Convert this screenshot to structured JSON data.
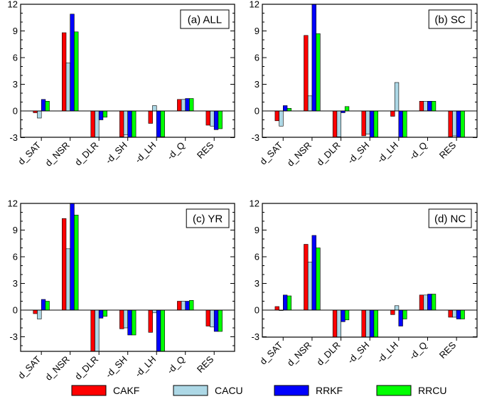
{
  "legend": {
    "items": [
      {
        "label": "CAKF",
        "color": "#ff0000"
      },
      {
        "label": "CACU",
        "color": "#add8e6"
      },
      {
        "label": "RRKF",
        "color": "#0000ff"
      },
      {
        "label": "RRCU",
        "color": "#00ff00"
      }
    ]
  },
  "chart_data": [
    {
      "type": "bar",
      "title": "(a) ALL",
      "categories": [
        "d_SAT",
        "d_NSR",
        "d_DLR",
        "-d_SH",
        "-d_LH",
        "-d_Q",
        "RES"
      ],
      "ylim": [
        -5,
        12
      ],
      "yticks": [
        12,
        9,
        6,
        3,
        0,
        -3
      ],
      "series": [
        {
          "name": "CAKF",
          "values": [
            -0.2,
            8.8,
            -4.3,
            -2.9,
            -1.4,
            1.3,
            -1.6
          ]
        },
        {
          "name": "CACU",
          "values": [
            -0.8,
            5.4,
            -3.9,
            -2.7,
            0.6,
            1.3,
            -1.7
          ]
        },
        {
          "name": "RRKF",
          "values": [
            1.3,
            10.9,
            -1.0,
            -3.4,
            -4.4,
            1.4,
            -2.1
          ]
        },
        {
          "name": "RRCU",
          "values": [
            1.1,
            8.9,
            -0.7,
            -3.3,
            -2.9,
            1.4,
            -2.0
          ]
        }
      ]
    },
    {
      "type": "bar",
      "title": "(b) SC",
      "categories": [
        "d_SAT",
        "d_NSR",
        "d_DLR",
        "-d_SH",
        "-d_LH",
        "-d_Q",
        "RES"
      ],
      "ylim": [
        -5,
        12
      ],
      "yticks": [
        12,
        9,
        6,
        3,
        0,
        -3
      ],
      "series": [
        {
          "name": "CAKF",
          "values": [
            -1.1,
            8.5,
            -4.3,
            -2.8,
            -0.6,
            1.1,
            -2.9
          ]
        },
        {
          "name": "CACU",
          "values": [
            -1.7,
            1.7,
            -2.9,
            -2.6,
            3.2,
            1.1,
            -2.8
          ]
        },
        {
          "name": "RRKF",
          "values": [
            0.6,
            12.0,
            -0.2,
            -3.3,
            -5.0,
            1.1,
            -3.5
          ]
        },
        {
          "name": "RRCU",
          "values": [
            0.3,
            8.7,
            0.5,
            -3.3,
            -3.3,
            1.1,
            -3.4
          ]
        }
      ]
    },
    {
      "type": "bar",
      "title": "(c) YR",
      "categories": [
        "d_SAT",
        "d_NSR",
        "d_DLR",
        "-d_SH",
        "-d_LH",
        "-d_Q",
        "RES"
      ],
      "ylim": [
        -5,
        12
      ],
      "yticks": [
        12,
        9,
        6,
        3,
        0,
        -3
      ],
      "series": [
        {
          "name": "CAKF",
          "values": [
            -0.4,
            10.3,
            -5.0,
            -2.1,
            -2.5,
            1.0,
            -1.8
          ]
        },
        {
          "name": "CACU",
          "values": [
            -1.0,
            6.9,
            -4.7,
            -2.0,
            -0.3,
            1.0,
            -1.9
          ]
        },
        {
          "name": "RRKF",
          "values": [
            1.2,
            12.0,
            -0.9,
            -2.8,
            -5.0,
            1.0,
            -2.4
          ]
        },
        {
          "name": "RRCU",
          "values": [
            1.0,
            10.7,
            -0.7,
            -2.8,
            -4.7,
            1.1,
            -2.4
          ]
        }
      ]
    },
    {
      "type": "bar",
      "title": "(d) NC",
      "categories": [
        "d_SAT",
        "d_NSR",
        "d_DLR",
        "-d_SH",
        "-d_LH",
        "-d_Q",
        "RES"
      ],
      "ylim": [
        -5,
        12
      ],
      "yticks": [
        12,
        9,
        6,
        3,
        0,
        -3
      ],
      "series": [
        {
          "name": "CAKF",
          "values": [
            0.4,
            7.4,
            -3.5,
            -3.7,
            -0.5,
            1.7,
            -0.8
          ]
        },
        {
          "name": "CACU",
          "values": [
            0.0,
            5.4,
            -3.3,
            -3.6,
            0.5,
            1.7,
            -0.8
          ]
        },
        {
          "name": "RRKF",
          "values": [
            1.7,
            8.4,
            -1.3,
            -4.1,
            -1.8,
            1.8,
            -1.0
          ]
        },
        {
          "name": "RRCU",
          "values": [
            1.6,
            7.0,
            -1.1,
            -4.0,
            -1.0,
            1.8,
            -1.0
          ]
        }
      ]
    }
  ]
}
